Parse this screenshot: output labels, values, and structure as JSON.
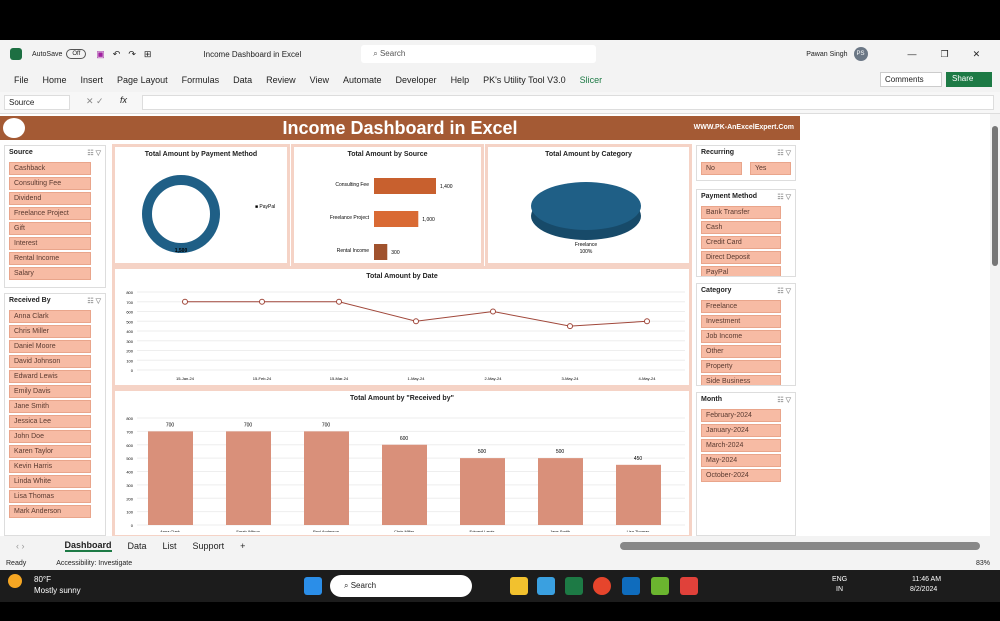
{
  "window": {
    "autosave": "AutoSave",
    "autosave_state": "Off",
    "file_title": "Income Dashboard in Excel",
    "search_placeholder": "Search",
    "user": "Pawan Singh",
    "user_initials": "PS",
    "comments": "Comments",
    "share": "Share"
  },
  "menu": [
    "File",
    "Home",
    "Insert",
    "Page Layout",
    "Formulas",
    "Data",
    "Review",
    "View",
    "Automate",
    "Developer",
    "Help",
    "PK's Utility Tool V3.0",
    "Slicer"
  ],
  "formula_bar": {
    "name_box": "Source",
    "fx": "fx"
  },
  "dashboard": {
    "title": "Income Dashboard in Excel",
    "website": "WWW.PK-AnExcelExpert.Com"
  },
  "slicers": {
    "source": {
      "title": "Source",
      "items": [
        "Cashback",
        "Consulting Fee",
        "Dividend",
        "Freelance Project",
        "Gift",
        "Interest",
        "Rental Income",
        "Salary"
      ]
    },
    "received_by": {
      "title": "Received By",
      "items": [
        "Anna Clark",
        "Chris Miller",
        "Daniel Moore",
        "David Johnson",
        "Edward Lewis",
        "Emily Davis",
        "Jane Smith",
        "Jessica Lee",
        "John Doe",
        "Karen Taylor",
        "Kevin Harris",
        "Linda White",
        "Lisa Thomas",
        "Mark Anderson"
      ]
    },
    "recurring": {
      "title": "Recurring",
      "items": [
        "No",
        "Yes"
      ]
    },
    "payment_method": {
      "title": "Payment Method",
      "items": [
        "Bank Transfer",
        "Cash",
        "Credit Card",
        "Direct Deposit",
        "PayPal"
      ]
    },
    "category": {
      "title": "Category",
      "items": [
        "Freelance",
        "Investment",
        "Job Income",
        "Other",
        "Property",
        "Side Business"
      ]
    },
    "month": {
      "title": "Month",
      "items": [
        "February-2024",
        "January-2024",
        "March-2024",
        "May-2024",
        "October-2024"
      ]
    }
  },
  "chart_data": [
    {
      "type": "pie",
      "title": "Total Amount by Payment Method",
      "donut": true,
      "categories": [
        "PayPal"
      ],
      "values": [
        1500
      ],
      "data_labels": [
        "1,500"
      ],
      "legend": "right",
      "legend_entries": [
        "PayPal"
      ],
      "colors": [
        "#1f5f86"
      ]
    },
    {
      "type": "bar",
      "orientation": "horizontal",
      "title": "Total Amount by Source",
      "categories": [
        "Consulting Fee",
        "Freelance Project",
        "Rental Income"
      ],
      "values": [
        1400,
        1000,
        300
      ],
      "data_labels": [
        "1,400",
        "1,000",
        "300"
      ],
      "colors": [
        "#c8602e",
        "#d96a34",
        "#a0522d"
      ]
    },
    {
      "type": "pie",
      "title": "Total Amount by Category",
      "three_d": true,
      "categories": [
        "Freelance"
      ],
      "values": [
        100
      ],
      "data_labels": [
        "Freelance",
        "100%"
      ],
      "colors": [
        "#1f5f86"
      ]
    },
    {
      "type": "line",
      "title": "Total Amount by Date",
      "x": [
        "15-Jan-24",
        "15-Feb-24",
        "15-Mar-24",
        "1-May-24",
        "2-May-24",
        "3-May-24",
        "4-May-24"
      ],
      "values": [
        700,
        700,
        700,
        500,
        600,
        450,
        500
      ],
      "ylim": [
        0,
        800
      ],
      "yticks": [
        0,
        100,
        200,
        300,
        400,
        500,
        600,
        700,
        800
      ],
      "grid": true,
      "color": "#a0473a"
    },
    {
      "type": "bar",
      "title": "Total Amount by \"Received by\"",
      "categories": [
        "Anna Clark",
        "Sarah Wilson",
        "Paul Anderson",
        "Chris Miller",
        "Edward Lewis",
        "Jane Smith",
        "Lisa Thomas"
      ],
      "values": [
        700,
        700,
        700,
        600,
        500,
        500,
        450
      ],
      "data_labels": [
        "700",
        "700",
        "700",
        "600",
        "500",
        "500",
        "450"
      ],
      "ylim": [
        0,
        800
      ],
      "yticks": [
        0,
        100,
        200,
        300,
        400,
        500,
        600,
        700,
        800
      ],
      "grid": true,
      "color": "#d9907a"
    }
  ],
  "sheet_tabs": [
    "Dashboard",
    "Data",
    "List",
    "Support"
  ],
  "status": {
    "ready": "Ready",
    "accessibility": "Accessibility: Investigate",
    "zoom": "83%"
  },
  "taskbar": {
    "temp": "80°F",
    "weather": "Mostly sunny",
    "search": "Search",
    "lang1": "ENG",
    "lang2": "IN",
    "time": "11:46 AM",
    "date": "8/2/2024"
  }
}
